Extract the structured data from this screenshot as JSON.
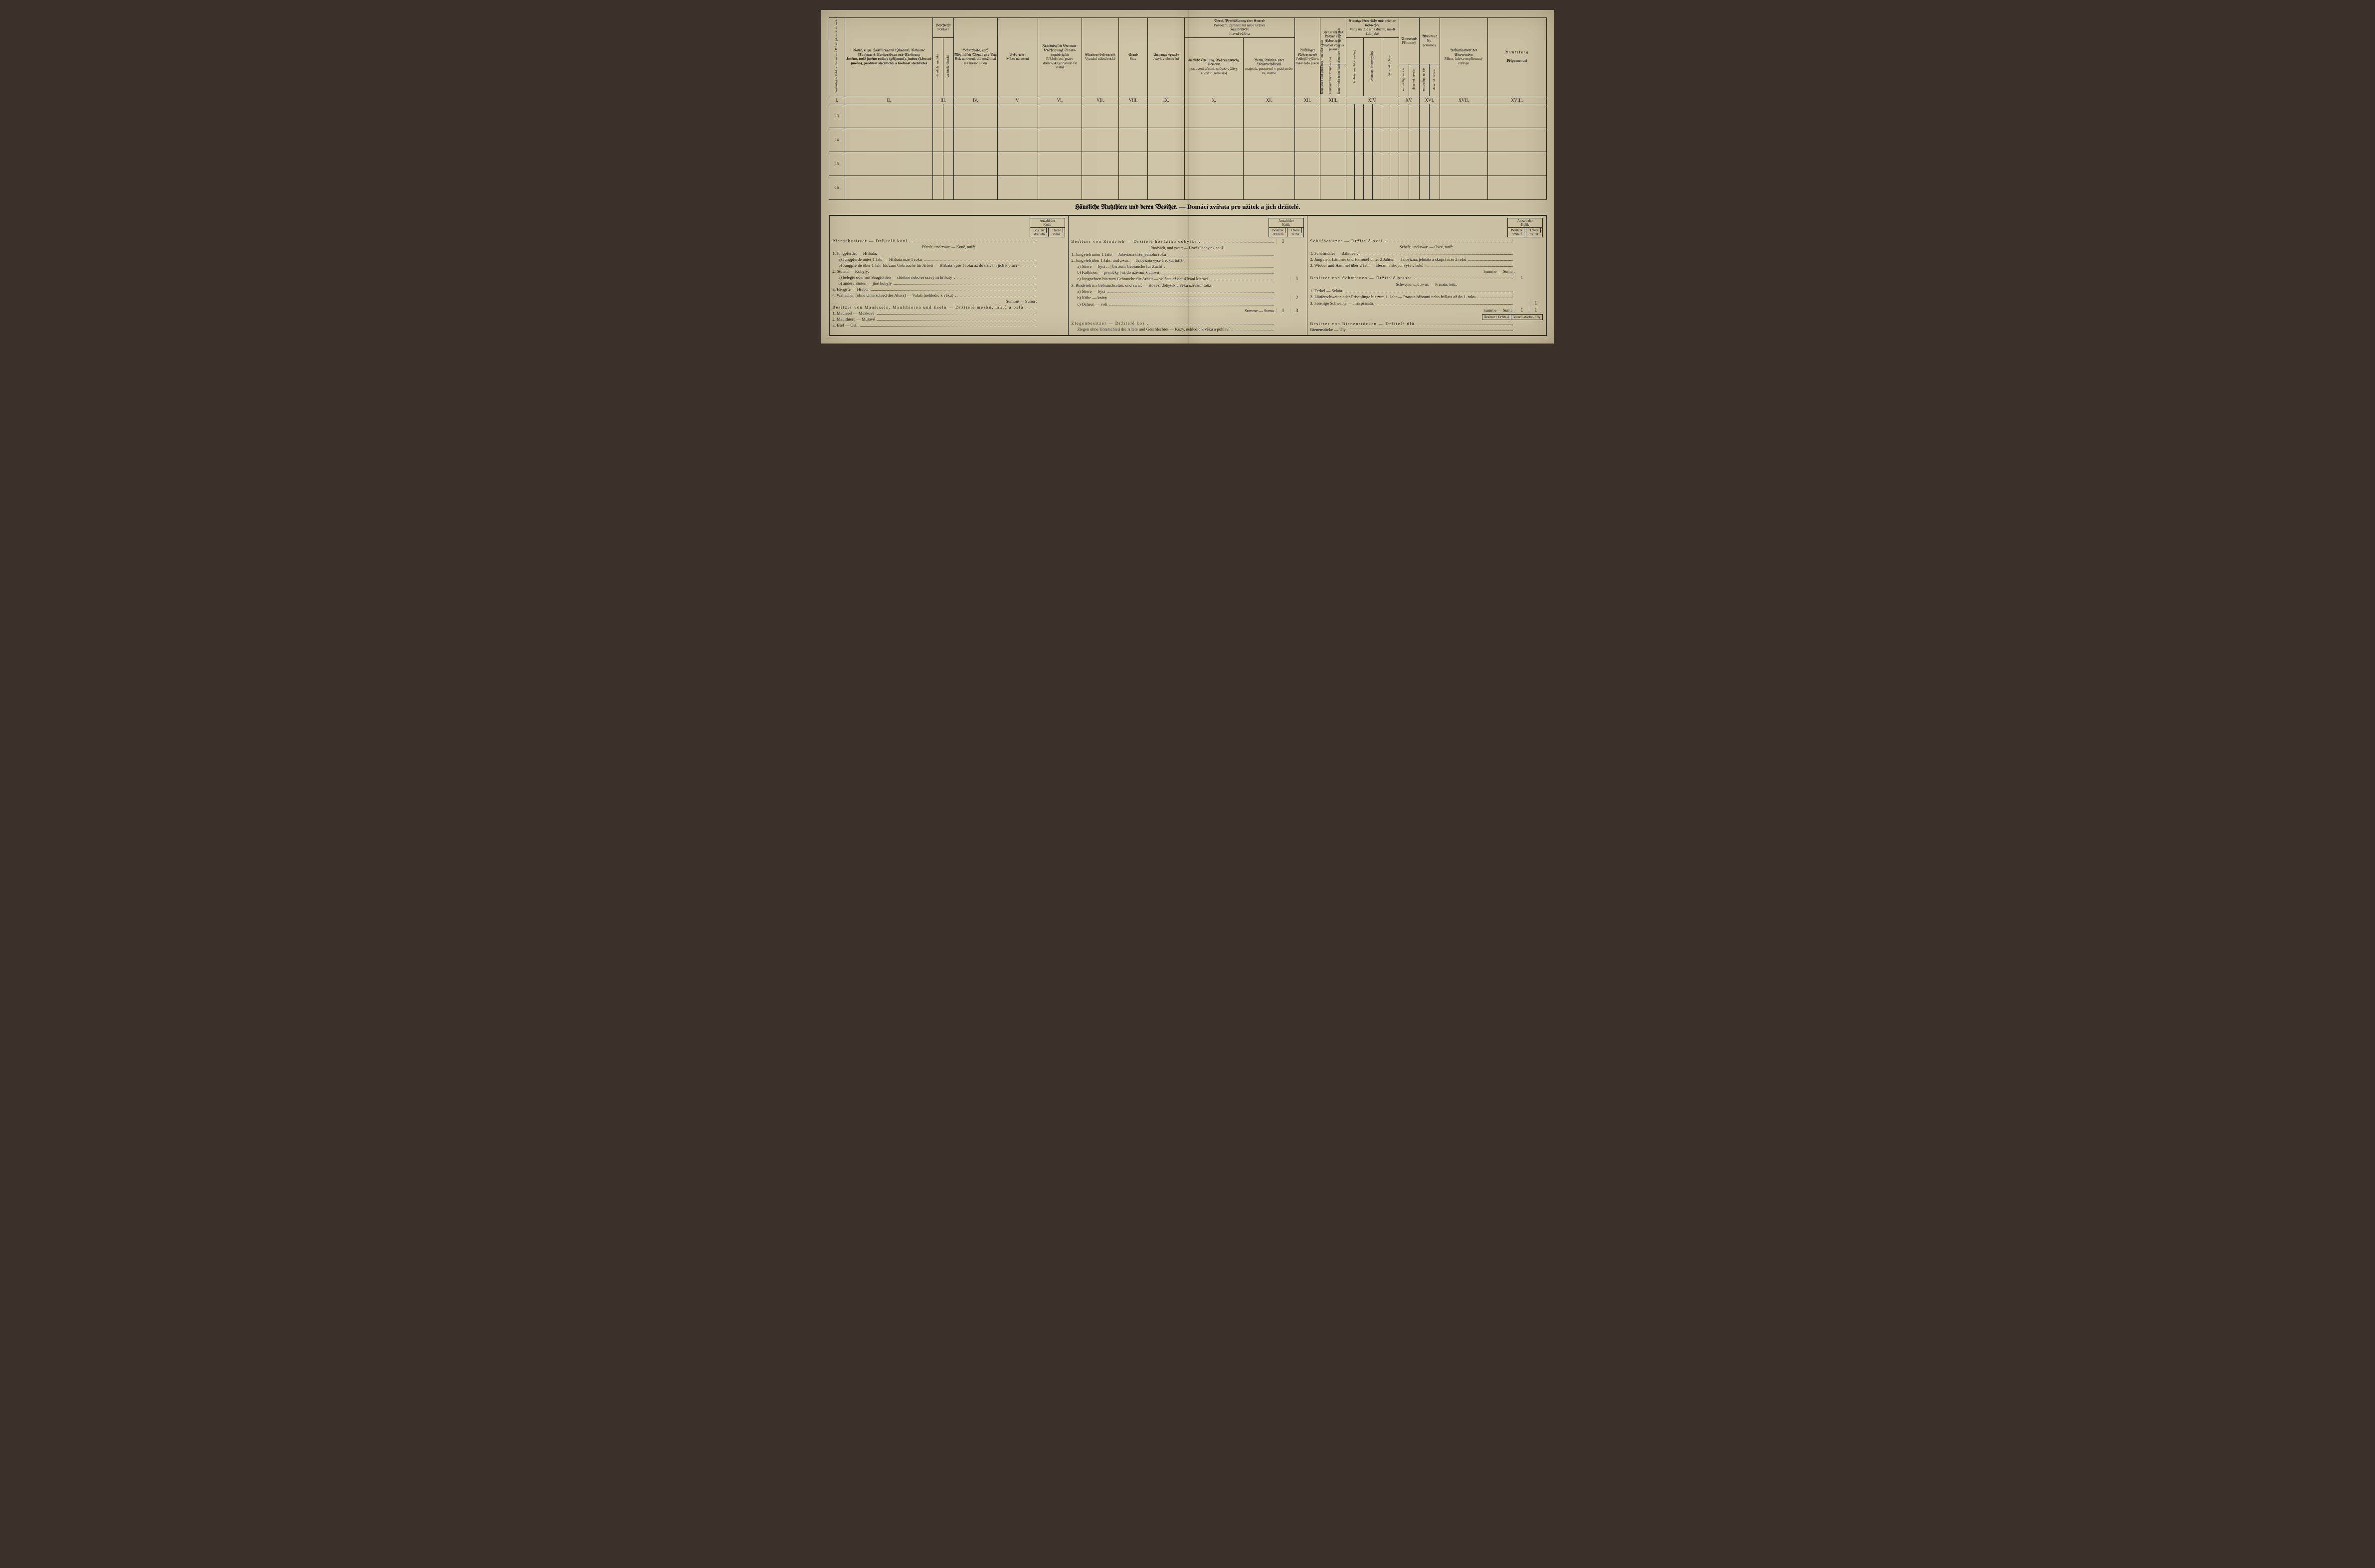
{
  "upper": {
    "cols": {
      "c1": {
        "de": "Fortlaufende Zahl der Personen",
        "cz": "Pořád. jdoucí číslo osob"
      },
      "c2": {
        "de": "Name,\nu. zw. Familienname (Zuname), Vorname (Taufname), Adelsprädicat und Adelsrang",
        "cz": "Jméno,\ntotiž jméno rodiny (příjmení), jméno (křestné jméno), predikát šlechtický a hodnost šlechtická"
      },
      "c3": {
        "de": "Geschlecht",
        "cz": "Pohlaví",
        "m_de": "männlich",
        "m_cz": "mužské",
        "f_de": "weiblich",
        "f_cz": "ženské"
      },
      "c4": {
        "de": "Geburtsjahr,\nnach Möglichkeit Monat und Tag",
        "cz": "Rok narození,\ndle možnosti též měsíc a den"
      },
      "c5": {
        "de": "Geburtsort",
        "cz": "Místo narození"
      },
      "c6": {
        "de": "Zuständigkeit (Heimats-berechtigung), Staats-angehörigkeit",
        "cz": "Příslušnost (právo domovské) příslušnost státní"
      },
      "c7": {
        "de": "Glaubens-bekenntniß",
        "cz": "Vyznání náboženské"
      },
      "c8": {
        "de": "Stand",
        "cz": "Stav"
      },
      "c9": {
        "de": "Umgangs-sprache",
        "cz": "Jazyk v obcování"
      },
      "c10_hdr": {
        "de": "Beruf, Beschäftigung oder Erwerb",
        "cz": "Povolání, zaměstnání nebo výživa",
        "sub_de": "Haupterwerb",
        "sub_cz": "hlavní výživa"
      },
      "c10": {
        "de": "ämtliche Stellung, Nahrungszweig, Gewerbe",
        "cz": "postavení úřední, spůsob výživy, živnost (řemeslo)"
      },
      "c11": {
        "de": "Besitz, Arbeits- oder Dienstverhältniß",
        "cz": "majetek, postavení v práci nebo ve službě"
      },
      "c12": {
        "de": "Allfälliger Nebenerwerb",
        "cz": "Vedlejší výživa, má-li kdo jakou"
      },
      "c13": {
        "de": "Kenntniß des Lesens und Schreibens",
        "cz": "Znalost čtení a psaní"
      },
      "c14": {
        "de": "Etwaige körperliche und geistige Gebrechen",
        "cz": "Vady na těle a na duchu, má-li kdo jaké"
      },
      "c15": {
        "de": "Anwesend",
        "cz": "Přítomný"
      },
      "c16": {
        "de": "Abwesend",
        "cz": "Ne-přítomný"
      },
      "c17": {
        "de": "Aufenthaltsort des Abwesenden",
        "cz": "Místo, kde se nepřítomný zdržuje"
      },
      "c18": {
        "de": "Anmerkung",
        "cz": "Připomenutí"
      }
    },
    "sub13": [
      "kann lesen und schreiben / umí číst a psát",
      "kann nur lesen / umí jen číst",
      "kann weder lesen noch schreiben / ani číst ani psát"
    ],
    "sub14": [
      "taubstumm / hluchoněmý",
      "irrsinnig / choromyslný",
      "blödsinnig / blbý"
    ],
    "sub1516": [
      "zeitweilig / na čas",
      "dauernd / trvale"
    ],
    "romans": [
      "I.",
      "II.",
      "III.",
      "IV.",
      "V.",
      "VI.",
      "VII.",
      "VIII.",
      "IX.",
      "X.",
      "XI.",
      "XII.",
      "XIII.",
      "XIV.",
      "XV.",
      "XVI.",
      "XVII.",
      "XVIII."
    ],
    "rows": [
      "13",
      "14",
      "15",
      "16"
    ]
  },
  "section_title": {
    "de": "Häusliche Nutzthiere und deren Besitzer.",
    "cz": "Domácí zvířata pro užitek a jich držitelé."
  },
  "kolik": {
    "top_de": "Anzahl der",
    "top_cz": "Kolik",
    "l_de": "Besitzer",
    "l_cz": "držitelů",
    "r_de": "Thiere",
    "r_cz": "zvířat"
  },
  "col_left": {
    "h1": "Pferdebesitzer — Držitelé koní",
    "sub": "Pferde, und zwar: — Koně, totiž:",
    "i1": "1. Jungpferde: — Hříbata:",
    "i1a": "a) Jungpferde unter 1 Jahr — Hříbata níže 1 roku",
    "i1b": "b) Jungpferde über 1 Jahr bis zum Gebrauche für Arbeit — Hříbata výše 1 roku až do užívání jich k práci",
    "i2": "2. Stuten: — Kobyly:",
    "i2a": "a) belegte oder mit Saugfohlen — shřebné nebo se ssavými hříbaty",
    "i2b": "b) andere Stuten — jiné kobyly",
    "i3": "3. Hengste — Hřebci",
    "i4": "4. Wallachen (ohne Unterschied des Alters) — Valaši (nehledíc k věku)",
    "sum": "Summe — Suma .",
    "h2": "Besitzer von Mauleseln, Maulthieren und Eseln — Držitelé mezků, mulů a oslů",
    "j1": "1. Maulesel — Mezkové",
    "j2": "2. Maulthiere — Mulové",
    "j3": "3. Esel — Osli"
  },
  "col_mid": {
    "h1": "Besitzer von Rindvieh — Držitelé hovězího dobytka",
    "h1_v1": "1",
    "sub": "Rindvieh, und zwar: — Hovězí dobytek, totiž:",
    "i1": "1. Jungvieh unter 1 Jahr — Jalovizna níže jednoho roku",
    "i2": "2. Jungvieh über 1 Jahr, und zwar: — Jalovizna výše 1 roku, totiž:",
    "i2a": "a) Stiere — býci . . | bis zum Gebrauche für Zucht",
    "i2b": "b) Kalbinen — prvničky | až do užívání k chovu",
    "i2c": "c) Jungochsen bis zum Gebrauche für Arbeit — volčata až do užívání k práci",
    "i2c_v2": "1",
    "i3": "3. Rindvieh im Gebrauchsalter, und zwar: — Hovězí dobytek u věku užívání, totiž:",
    "i3a": "a) Stiere — býci",
    "i3b": "b) Kühe — krávy",
    "i3b_v2": "2",
    "i3c": "c) Ochsen — voli",
    "sum": "Summe — Suma .",
    "sum_v1": "1",
    "sum_v2": "3",
    "h2": "Ziegenbesitzer — Držitelé koz",
    "j1": "Ziegen ohne Unterschied des Alters und Geschlechtes — Kozy, nehledíc k věku a pohlaví"
  },
  "col_right": {
    "h1": "Schafbesitzer — Držitelé ovcí",
    "sub": "Schafe, und zwar: — Ovce, totiž:",
    "i1": "1. Schafmütter — Bahnice",
    "i2": "2. Jungvieh, Lämmer und Hammel unter 2 Jahren — Jalovizna, jehňata a skopci níže 2 roků",
    "i3": "3. Widder und Hammel über 2 Jahr — Berani a skopci výše 2 roků",
    "sum": "Summe — Suma .",
    "h2": "Besitzer von Schweinen — Držitelé prasat",
    "h2_v1": "1",
    "sub2": "Schweine, und zwar: — Prasata, totiž:",
    "j1": "1. Ferkel — Selata",
    "j2": "2. Läuferschweine oder Frischlinge bis zum 1. Jahr — Prasata běhouni nebo frišlata až do 1. roku",
    "j3": "3. Sonstige Schweine — Jiná prasata",
    "j3_v2": "1",
    "sum2": "Summe — Suma .",
    "sum2_v1": "1",
    "sum2_v2": "1",
    "box": {
      "l": "Besitzer / Držitelé",
      "r": "Bienen-stöcke / Úly"
    },
    "h3": "Besitzer von Bienenstöcken — Držitelé úlů",
    "k1": "Bienenstöcke — Úly"
  }
}
